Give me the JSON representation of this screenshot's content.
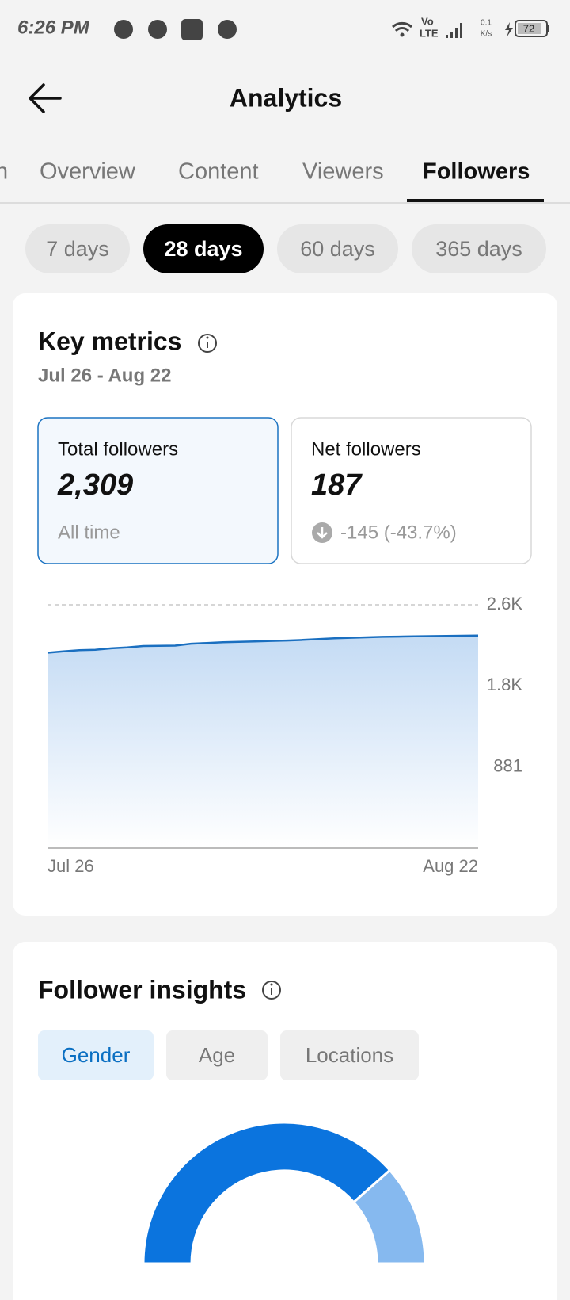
{
  "status_bar": {
    "time": "6:26 PM",
    "network_top": "Vo",
    "network_bottom": "LTE",
    "speed_top": "0.1",
    "speed_bottom": "K/s",
    "battery": "72"
  },
  "header": {
    "title": "Analytics"
  },
  "tabs": {
    "items": [
      "n",
      "Overview",
      "Content",
      "Viewers",
      "Followers"
    ],
    "active": 4
  },
  "periods": {
    "items": [
      "7 days",
      "28 days",
      "60 days",
      "365 days"
    ],
    "active": 1
  },
  "key_metrics": {
    "title": "Key metrics",
    "date_range": "Jul 26 - Aug 22",
    "cards": [
      {
        "label": "Total followers",
        "value": "2,309",
        "note": "All time"
      },
      {
        "label": "Net followers",
        "value": "187",
        "note": "-145 (-43.7%)"
      }
    ]
  },
  "follower_insights": {
    "title": "Follower insights",
    "tabs": [
      "Gender",
      "Age",
      "Locations"
    ],
    "active": 0
  },
  "chart_data": [
    {
      "type": "line",
      "area": true,
      "color": "#1a6fc0",
      "categories": [
        "Jul 26",
        null,
        null,
        null,
        null,
        null,
        null,
        null,
        null,
        null,
        null,
        null,
        null,
        null,
        null,
        null,
        null,
        null,
        null,
        null,
        null,
        null,
        null,
        null,
        null,
        null,
        null,
        "Aug 22"
      ],
      "values": [
        2122,
        2138,
        2150,
        2155,
        2170,
        2180,
        2195,
        2198,
        2200,
        2220,
        2228,
        2236,
        2240,
        2245,
        2250,
        2255,
        2262,
        2270,
        2280,
        2285,
        2290,
        2295,
        2298,
        2300,
        2303,
        2305,
        2307,
        2309
      ],
      "ylim": [
        0,
        2643
      ],
      "yticks": [
        881,
        {
          "value": 1762,
          "label": "1.8K"
        },
        {
          "value": 2643,
          "label": "2.6K"
        }
      ],
      "grid": true
    },
    {
      "type": "pie",
      "donut": true,
      "half": true,
      "values": [
        77,
        23
      ],
      "colors": [
        "#0b74de",
        "#86b9ef"
      ]
    }
  ]
}
